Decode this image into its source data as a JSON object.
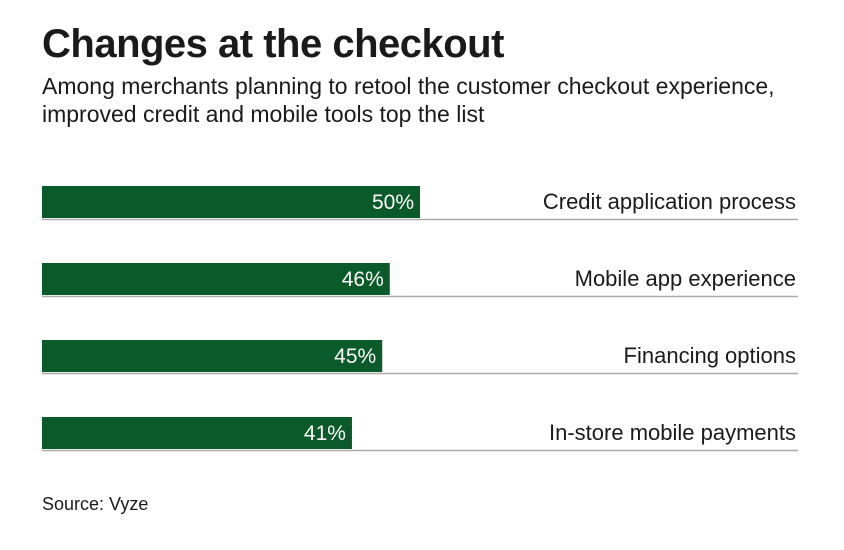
{
  "title": "Changes at the checkout",
  "subtitle": "Among merchants planning to retool the customer checkout experience, improved credit and mobile tools top the list",
  "source": "Source: Vyze",
  "colors": {
    "bar": "#0b5a2a",
    "bar_label": "#ffffff",
    "text": "#1a1a1a",
    "baseline": "#aaaaaa"
  },
  "chart_data": {
    "type": "bar",
    "orientation": "horizontal",
    "categories": [
      "Credit application process",
      "Mobile app experience",
      "Financing options",
      "In-store mobile payments"
    ],
    "values": [
      50,
      46,
      45,
      41
    ],
    "value_labels": [
      "50%",
      "46%",
      "45%",
      "41%"
    ],
    "unit": "%",
    "xlim": [
      0,
      100
    ],
    "grid": false,
    "legend": "none",
    "title": "Changes at the checkout",
    "xlabel": "",
    "ylabel": ""
  }
}
